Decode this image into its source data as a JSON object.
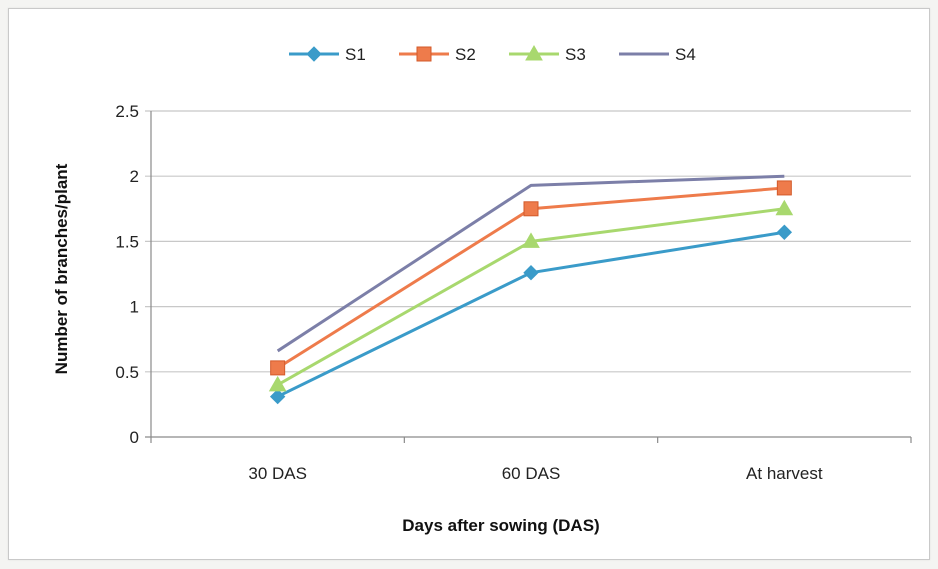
{
  "chart_data": {
    "type": "line",
    "title": "",
    "xlabel": "Days after sowing (DAS)",
    "ylabel": "Number of branches/plant",
    "categories": [
      "30 DAS",
      "60 DAS",
      "At harvest"
    ],
    "ylim": [
      0,
      2.5
    ],
    "yticks": [
      "0",
      "0.5",
      "1",
      "1.5",
      "2",
      "2.5"
    ],
    "grid": true,
    "legend_position": "top",
    "series": [
      {
        "name": "S1",
        "values": [
          0.31,
          1.26,
          1.57
        ],
        "color": "#3a9bc9",
        "marker": "diamond"
      },
      {
        "name": "S2",
        "values": [
          0.53,
          1.75,
          1.91
        ],
        "color": "#ee7b4b",
        "marker": "square"
      },
      {
        "name": "S3",
        "values": [
          0.4,
          1.5,
          1.75
        ],
        "color": "#a8d86e",
        "marker": "triangle"
      },
      {
        "name": "S4",
        "values": [
          0.66,
          1.93,
          2.0
        ],
        "color": "#7c7fa8",
        "marker": "none"
      }
    ]
  }
}
